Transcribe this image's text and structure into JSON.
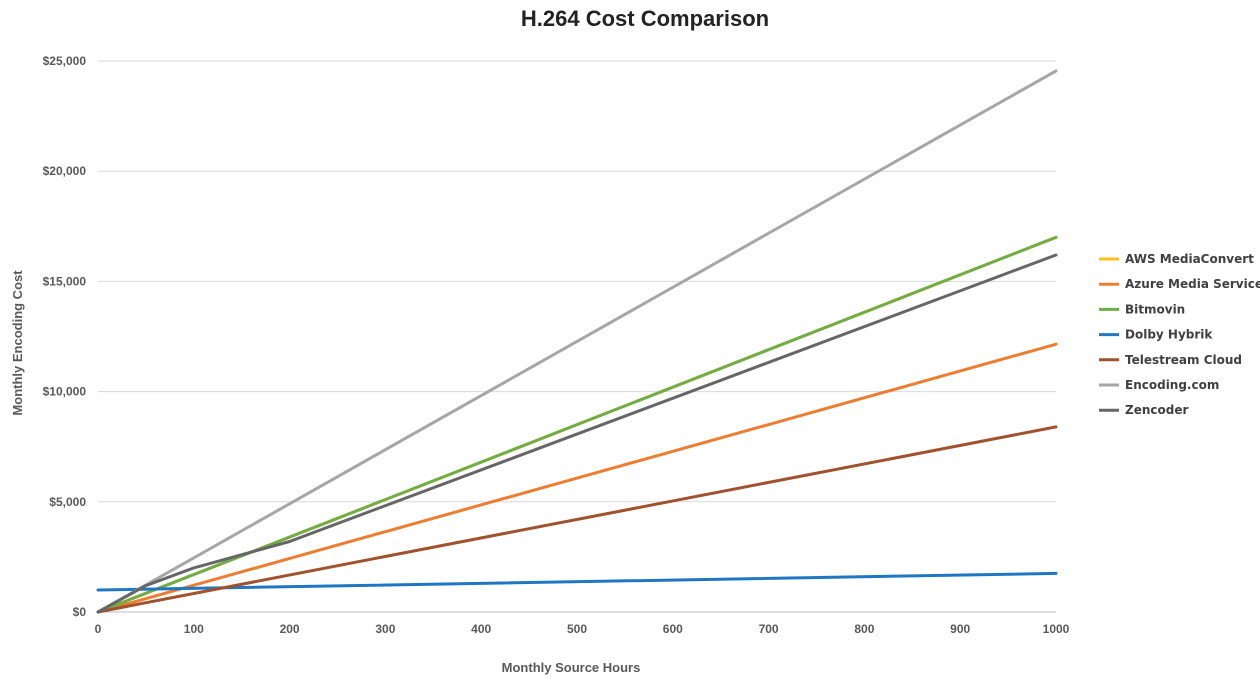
{
  "chart_data": {
    "type": "line",
    "title": "H.264 Cost Comparison",
    "xlabel": "Monthly Source Hours",
    "ylabel": "Monthly Encoding Cost",
    "xlim": [
      0,
      1000
    ],
    "ylim": [
      0,
      25000
    ],
    "x_ticks": [
      "0",
      "100",
      "200",
      "300",
      "400",
      "500",
      "600",
      "700",
      "800",
      "900",
      "1000"
    ],
    "y_ticks": [
      "$0",
      "$5,000",
      "$10,000",
      "$15,000",
      "$20,000",
      "$25,000"
    ],
    "grid": true,
    "legend_position": "right",
    "series": [
      {
        "name": "AWS MediaConvert",
        "color": "#f9bf1d",
        "x": [
          0,
          1000
        ],
        "y": [
          0,
          17000
        ]
      },
      {
        "name": "Azure Media Services",
        "color": "#ed7d31",
        "x": [
          0,
          1000
        ],
        "y": [
          0,
          12150
        ]
      },
      {
        "name": "Bitmovin",
        "color": "#70ad47",
        "x": [
          0,
          1000
        ],
        "y": [
          0,
          17000
        ]
      },
      {
        "name": "Dolby Hybrik",
        "color": "#1f77c4",
        "x": [
          0,
          1000
        ],
        "y": [
          1000,
          1750
        ]
      },
      {
        "name": "Telestream Cloud",
        "color": "#a0522d",
        "x": [
          0,
          1000
        ],
        "y": [
          0,
          8400
        ]
      },
      {
        "name": "Encoding.com",
        "color": "#a6a6a6",
        "x": [
          0,
          1000
        ],
        "y": [
          0,
          24550
        ]
      },
      {
        "name": "Zencoder",
        "color": "#666666",
        "x": [
          0,
          50,
          100,
          200,
          1000
        ],
        "y": [
          0,
          1200,
          2000,
          3200,
          16200
        ]
      }
    ]
  }
}
